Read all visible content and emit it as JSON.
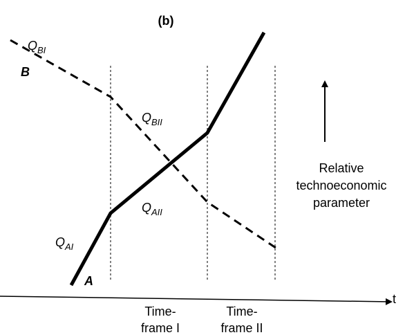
{
  "title": "(b)",
  "curves": [
    {
      "name": "B",
      "label": {
        "main": "Q",
        "sub": "BI"
      }
    },
    {
      "name": "A",
      "label": {
        "main": "Q",
        "sub": "AI"
      }
    }
  ],
  "segment_labels": [
    {
      "main": "Q",
      "sub": "BII"
    },
    {
      "main": "Q",
      "sub": "AII"
    }
  ],
  "y_axis_label": [
    "Relative",
    "technoeconomic",
    "parameter"
  ],
  "x_axis_label": "t",
  "timeframes": [
    [
      "Time-",
      "frame I"
    ],
    [
      "Time-",
      "frame II"
    ]
  ]
}
